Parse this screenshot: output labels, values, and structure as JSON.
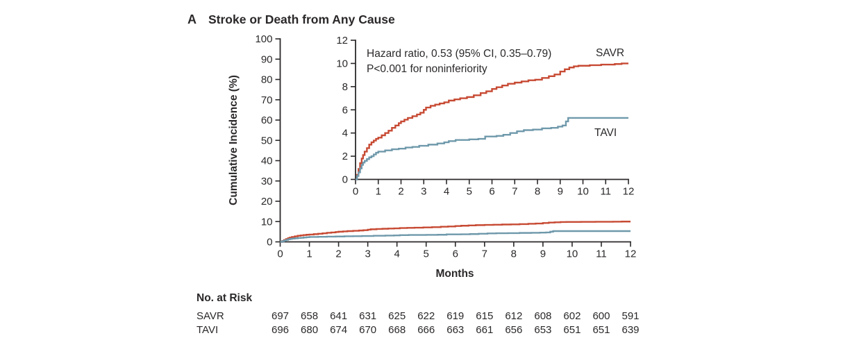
{
  "title": {
    "label": "A",
    "text": "Stroke or Death from Any Cause"
  },
  "colors": {
    "savr": "#c74a33",
    "tavi": "#6f99ab",
    "axis": "#2b2829"
  },
  "chart_data": {
    "type": "line",
    "subtype": "kaplan-meier-cumulative-incidence-step",
    "title": "Stroke or Death from Any Cause",
    "xlabel": "Months",
    "ylabel": "Cumulative Incidence (%)",
    "legend_position": "curve-end-labels",
    "grid": false,
    "main_axes": {
      "xlim": [
        0,
        12
      ],
      "ylim": [
        0,
        100
      ],
      "x_ticks": [
        0,
        1,
        2,
        3,
        4,
        5,
        6,
        7,
        8,
        9,
        10,
        11,
        12
      ],
      "y_ticks": [
        0,
        10,
        20,
        30,
        40,
        50,
        60,
        70,
        80,
        90,
        100
      ]
    },
    "inset_axes": {
      "xlim": [
        0,
        12
      ],
      "ylim": [
        0,
        12
      ],
      "x_ticks": [
        0,
        1,
        2,
        3,
        4,
        5,
        6,
        7,
        8,
        9,
        10,
        11,
        12
      ],
      "y_ticks": [
        0,
        2,
        4,
        6,
        8,
        10,
        12
      ]
    },
    "annotation": {
      "line1": "Hazard ratio, 0.53 (95% CI, 0.35–0.79)",
      "line2": "P<0.001 for noninferiority"
    },
    "series": [
      {
        "name": "SAVR",
        "color": "#c74a33",
        "final_value_pct": 10.0,
        "points": [
          [
            0,
            0
          ],
          [
            0.07,
            0.4
          ],
          [
            0.13,
            0.9
          ],
          [
            0.2,
            1.4
          ],
          [
            0.27,
            1.8
          ],
          [
            0.33,
            2.1
          ],
          [
            0.4,
            2.4
          ],
          [
            0.5,
            2.7
          ],
          [
            0.6,
            3.0
          ],
          [
            0.7,
            3.2
          ],
          [
            0.8,
            3.35
          ],
          [
            0.9,
            3.5
          ],
          [
            1.0,
            3.6
          ],
          [
            1.15,
            3.8
          ],
          [
            1.3,
            4.0
          ],
          [
            1.45,
            4.2
          ],
          [
            1.6,
            4.45
          ],
          [
            1.75,
            4.65
          ],
          [
            1.9,
            4.85
          ],
          [
            2.0,
            5.0
          ],
          [
            2.15,
            5.15
          ],
          [
            2.3,
            5.3
          ],
          [
            2.5,
            5.45
          ],
          [
            2.7,
            5.6
          ],
          [
            2.85,
            5.75
          ],
          [
            3.0,
            6.0
          ],
          [
            3.1,
            6.2
          ],
          [
            3.3,
            6.35
          ],
          [
            3.5,
            6.45
          ],
          [
            3.7,
            6.55
          ],
          [
            3.9,
            6.65
          ],
          [
            4.1,
            6.8
          ],
          [
            4.35,
            6.9
          ],
          [
            4.6,
            7.0
          ],
          [
            4.9,
            7.1
          ],
          [
            5.2,
            7.25
          ],
          [
            5.5,
            7.45
          ],
          [
            5.75,
            7.6
          ],
          [
            6.0,
            7.8
          ],
          [
            6.2,
            7.95
          ],
          [
            6.45,
            8.1
          ],
          [
            6.7,
            8.25
          ],
          [
            7.0,
            8.35
          ],
          [
            7.3,
            8.45
          ],
          [
            7.6,
            8.55
          ],
          [
            7.9,
            8.6
          ],
          [
            8.2,
            8.75
          ],
          [
            8.5,
            8.9
          ],
          [
            8.75,
            9.05
          ],
          [
            9.0,
            9.3
          ],
          [
            9.2,
            9.5
          ],
          [
            9.4,
            9.65
          ],
          [
            9.6,
            9.75
          ],
          [
            9.8,
            9.8
          ],
          [
            10.3,
            9.85
          ],
          [
            10.8,
            9.9
          ],
          [
            11.4,
            9.95
          ],
          [
            11.7,
            10.0
          ],
          [
            12,
            10.0
          ]
        ]
      },
      {
        "name": "TAVI",
        "color": "#6f99ab",
        "final_value_pct": 5.3,
        "points": [
          [
            0,
            0
          ],
          [
            0.07,
            0.3
          ],
          [
            0.13,
            0.6
          ],
          [
            0.2,
            0.95
          ],
          [
            0.27,
            1.25
          ],
          [
            0.33,
            1.45
          ],
          [
            0.4,
            1.6
          ],
          [
            0.5,
            1.75
          ],
          [
            0.6,
            1.9
          ],
          [
            0.7,
            2.0
          ],
          [
            0.8,
            2.15
          ],
          [
            0.9,
            2.3
          ],
          [
            1.0,
            2.4
          ],
          [
            1.3,
            2.5
          ],
          [
            1.6,
            2.6
          ],
          [
            1.9,
            2.65
          ],
          [
            2.2,
            2.75
          ],
          [
            2.5,
            2.8
          ],
          [
            2.8,
            2.9
          ],
          [
            3.2,
            3.0
          ],
          [
            3.6,
            3.1
          ],
          [
            3.9,
            3.2
          ],
          [
            4.1,
            3.3
          ],
          [
            4.4,
            3.4
          ],
          [
            5.0,
            3.45
          ],
          [
            5.4,
            3.5
          ],
          [
            5.7,
            3.7
          ],
          [
            6.2,
            3.75
          ],
          [
            6.5,
            3.85
          ],
          [
            6.8,
            4.0
          ],
          [
            7.1,
            4.15
          ],
          [
            7.4,
            4.25
          ],
          [
            7.8,
            4.3
          ],
          [
            8.2,
            4.4
          ],
          [
            8.6,
            4.45
          ],
          [
            8.9,
            4.55
          ],
          [
            9.1,
            4.65
          ],
          [
            9.25,
            5.0
          ],
          [
            9.35,
            5.3
          ],
          [
            10,
            5.3
          ],
          [
            12,
            5.3
          ]
        ]
      }
    ]
  },
  "risk_table": {
    "header": "No. at Risk",
    "months": [
      0,
      1,
      2,
      3,
      4,
      5,
      6,
      7,
      8,
      9,
      10,
      11,
      12
    ],
    "rows": [
      {
        "label": "SAVR",
        "values": [
          697,
          658,
          641,
          631,
          625,
          622,
          619,
          615,
          612,
          608,
          602,
          600,
          591
        ]
      },
      {
        "label": "TAVI",
        "values": [
          696,
          680,
          674,
          670,
          668,
          666,
          663,
          661,
          656,
          653,
          651,
          651,
          639
        ]
      }
    ]
  }
}
